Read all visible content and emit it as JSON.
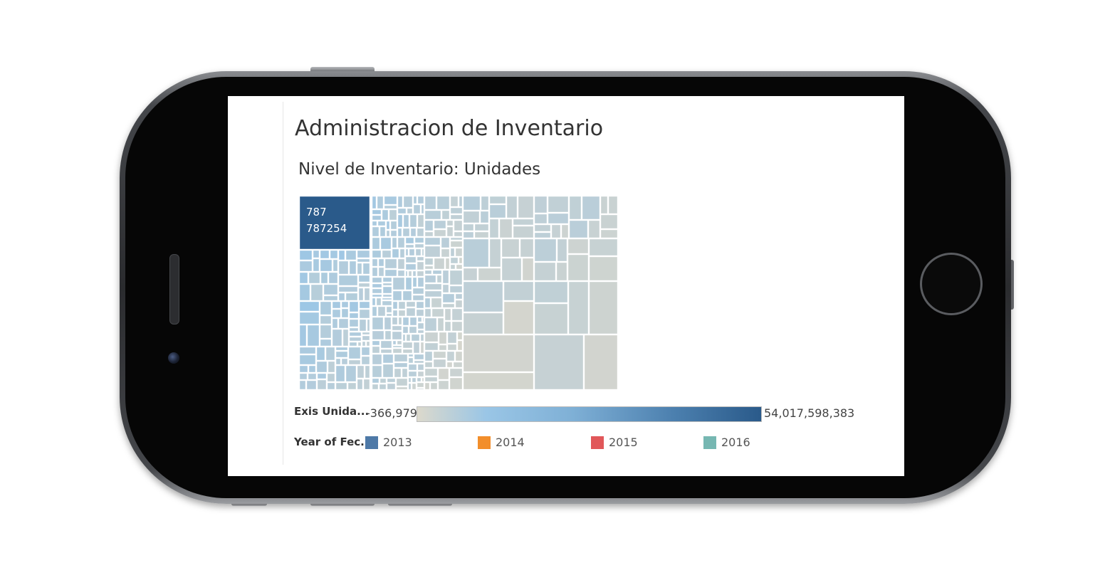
{
  "dashboard": {
    "title": "Administracion de Inventario",
    "chart_title": "Nivel de Inventario: Unidades",
    "highlight_tile": {
      "line1": "787",
      "line2": "787254"
    },
    "color_legend": {
      "label": "Exis Unida...",
      "min": "-366,979",
      "max": "54,017,598,383",
      "low_color": "#dcd9cc",
      "mid_color": "#9ac6e6",
      "high_color": "#2a5a8a"
    },
    "year_legend": {
      "label": "Year of Fec...",
      "items": [
        {
          "label": "2013",
          "color": "#4e79a7"
        },
        {
          "label": "2014",
          "color": "#f28e2b"
        },
        {
          "label": "2015",
          "color": "#e15759"
        },
        {
          "label": "2016",
          "color": "#76b7b2"
        }
      ]
    }
  },
  "colors": {
    "tile_dark": "#2a5a8a",
    "tile_light": "#9ac6e6",
    "tile_pale": "#c9d7dd",
    "tile_gray": "#d8d6cc"
  }
}
